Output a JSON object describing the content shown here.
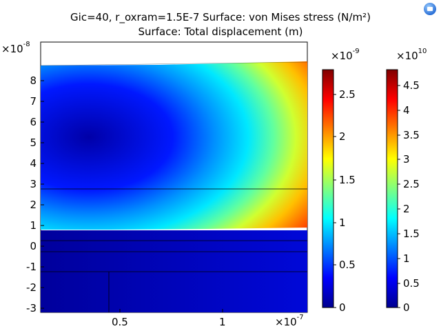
{
  "title_line1": "Gic=40, r_oxram=1.5E-7   Surface: von Mises stress (N/m²)",
  "title_line2": "Surface: Total displacement (m)",
  "y_axis": {
    "exponent_prefix": "×10",
    "exponent": "-8",
    "ticks": [
      "8",
      "7",
      "6",
      "5",
      "4",
      "3",
      "2",
      "1",
      "0",
      "-1",
      "-2",
      "-3"
    ]
  },
  "x_axis": {
    "exponent_prefix": "×10",
    "exponent": "-7",
    "ticks": [
      "0.5",
      "1"
    ]
  },
  "colorbar_displacement": {
    "exponent_prefix": "×10",
    "exponent": "-9",
    "ticks": [
      "2.5",
      "2",
      "1.5",
      "1",
      "0.5",
      "0"
    ]
  },
  "colorbar_stress": {
    "exponent_prefix": "×10",
    "exponent": "10",
    "ticks": [
      "4.5",
      "4",
      "3.5",
      "3",
      "2.5",
      "2",
      "1.5",
      "1",
      "0.5",
      "0"
    ]
  },
  "colors": {
    "jet_low": "#00008f",
    "jet_high": "#800000"
  },
  "icons": {
    "corner": "export-icon"
  }
}
